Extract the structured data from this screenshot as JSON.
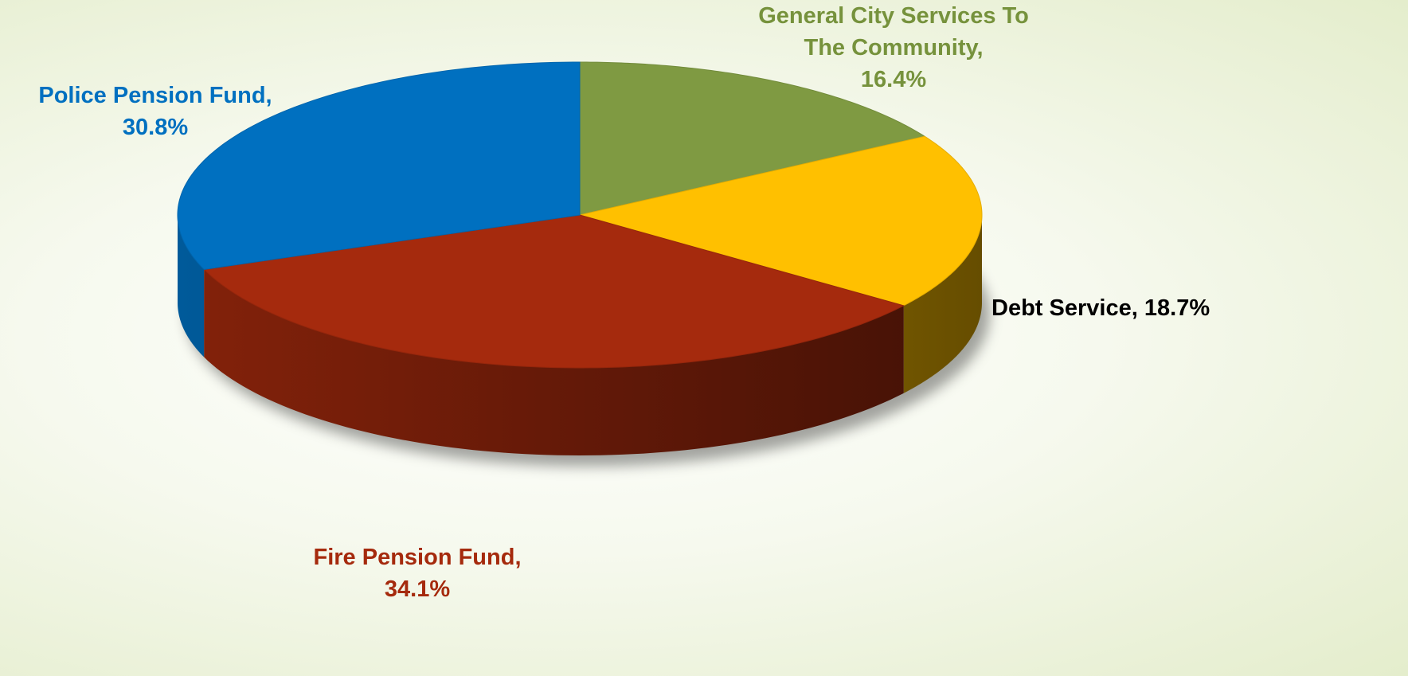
{
  "chart_data": {
    "type": "pie3d",
    "categories": [
      "General City Services To The Community,",
      "Debt Service,",
      "Fire Pension Fund,",
      "Police Pension Fund,"
    ],
    "values": [
      16.4,
      18.7,
      34.1,
      30.8
    ],
    "value_labels": [
      "16.4%",
      "18.7%",
      "34.1%",
      "30.8%"
    ],
    "colors": [
      "#7f9a42",
      "#ffc000",
      "#a52a0d",
      "#0070c0"
    ],
    "label_colors": [
      "#76923c",
      "#000000",
      "#a52a0d",
      "#0070c0"
    ]
  }
}
